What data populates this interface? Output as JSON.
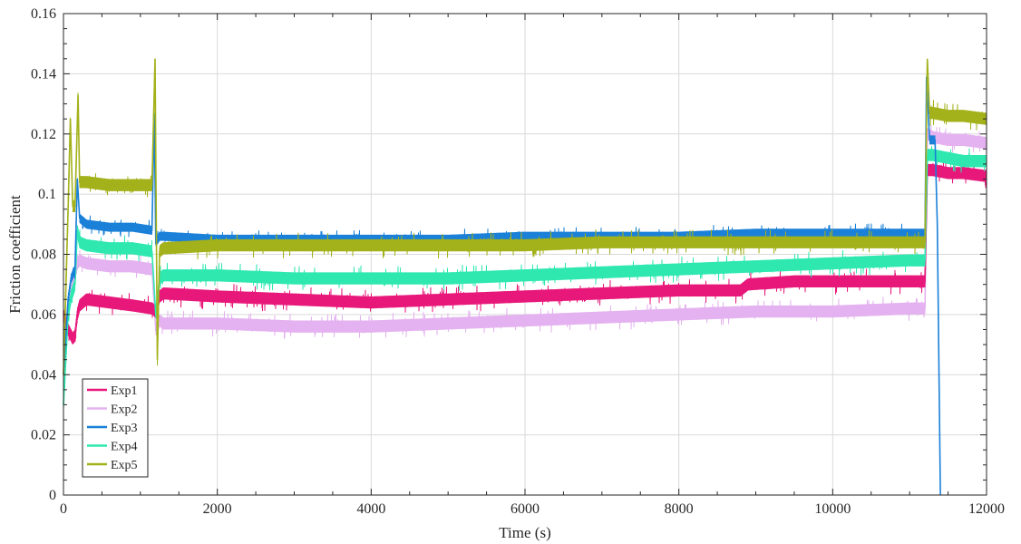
{
  "chart_data": {
    "type": "line",
    "title": "",
    "xlabel": "Time (s)",
    "ylabel": "Friction coefficient",
    "xlim": [
      0,
      12000
    ],
    "ylim": [
      0,
      0.16
    ],
    "x_ticks": [
      0,
      2000,
      4000,
      6000,
      8000,
      10000,
      12000
    ],
    "y_ticks": [
      0,
      0.02,
      0.04,
      0.06,
      0.08,
      0.1,
      0.12,
      0.14,
      0.16
    ],
    "x_tick_labels": [
      "0",
      "2000",
      "4000",
      "6000",
      "8000",
      "10000",
      "12000"
    ],
    "y_tick_labels": [
      "0",
      "0.02",
      "0.04",
      "0.06",
      "0.08",
      "0.1",
      "0.12",
      "0.14",
      "0.16"
    ],
    "grid": true,
    "legend_position": "bottom-left",
    "series": [
      {
        "name": "Exp1",
        "color": "#e8187a",
        "x": [
          0,
          60,
          120,
          150,
          180,
          210,
          300,
          600,
          900,
          1150,
          1200,
          1250,
          1300,
          2000,
          3000,
          4000,
          5000,
          6000,
          7000,
          8000,
          8800,
          8900,
          9500,
          10000,
          10500,
          11000,
          11200,
          11230,
          11300,
          11500,
          11700,
          12000
        ],
        "y": [
          0.06,
          0.055,
          0.052,
          0.053,
          0.06,
          0.063,
          0.065,
          0.064,
          0.063,
          0.062,
          0.061,
          0.066,
          0.067,
          0.066,
          0.065,
          0.064,
          0.065,
          0.066,
          0.067,
          0.068,
          0.068,
          0.07,
          0.071,
          0.071,
          0.071,
          0.071,
          0.071,
          0.108,
          0.108,
          0.107,
          0.107,
          0.106
        ],
        "band": 0.004
      },
      {
        "name": "Exp2",
        "color": "#e4b2f0",
        "x": [
          0,
          60,
          120,
          150,
          180,
          210,
          300,
          600,
          900,
          1150,
          1200,
          1250,
          1300,
          2000,
          3000,
          4000,
          5000,
          6000,
          7000,
          8000,
          9000,
          10000,
          11000,
          11200,
          11230,
          11300,
          11500,
          11700,
          12000
        ],
        "y": [
          0.05,
          0.06,
          0.07,
          0.074,
          0.077,
          0.078,
          0.077,
          0.076,
          0.076,
          0.075,
          0.055,
          0.058,
          0.057,
          0.057,
          0.056,
          0.056,
          0.057,
          0.058,
          0.059,
          0.06,
          0.061,
          0.061,
          0.062,
          0.062,
          0.12,
          0.119,
          0.118,
          0.118,
          0.117
        ],
        "band": 0.004
      },
      {
        "name": "Exp3",
        "color": "#1a80d8",
        "x": [
          0,
          60,
          100,
          150,
          180,
          210,
          300,
          600,
          900,
          1150,
          1180,
          1200,
          1250,
          1300,
          2000,
          3000,
          4000,
          5000,
          6000,
          7000,
          8000,
          9000,
          10000,
          11000,
          11200,
          11220,
          11260,
          11300,
          11330,
          11360,
          11400
        ],
        "y": [
          0.04,
          0.065,
          0.072,
          0.075,
          0.105,
          0.092,
          0.09,
          0.089,
          0.089,
          0.088,
          0.127,
          0.084,
          0.086,
          0.086,
          0.085,
          0.085,
          0.085,
          0.085,
          0.086,
          0.086,
          0.086,
          0.087,
          0.087,
          0.087,
          0.087,
          0.139,
          0.118,
          0.118,
          0.118,
          0.09,
          0.0
        ],
        "band": 0.003
      },
      {
        "name": "Exp4",
        "color": "#2ee8b0",
        "x": [
          0,
          60,
          100,
          150,
          180,
          210,
          300,
          600,
          900,
          1150,
          1200,
          1250,
          1300,
          2000,
          3000,
          4000,
          5000,
          6000,
          7000,
          8000,
          9000,
          10000,
          11000,
          11200,
          11230,
          11300,
          11500,
          11700,
          12000
        ],
        "y": [
          0.03,
          0.06,
          0.066,
          0.07,
          0.088,
          0.084,
          0.083,
          0.082,
          0.082,
          0.081,
          0.06,
          0.072,
          0.073,
          0.073,
          0.072,
          0.072,
          0.072,
          0.073,
          0.074,
          0.075,
          0.076,
          0.077,
          0.078,
          0.078,
          0.113,
          0.113,
          0.112,
          0.111,
          0.111
        ],
        "band": 0.004
      },
      {
        "name": "Exp5",
        "color": "#a3b11a",
        "x": [
          0,
          60,
          90,
          120,
          150,
          190,
          210,
          300,
          600,
          900,
          1150,
          1190,
          1220,
          1250,
          1300,
          2000,
          3000,
          4000,
          5000,
          6000,
          7000,
          8000,
          9000,
          10000,
          11000,
          11200,
          11230,
          11260,
          11300,
          11500,
          11700,
          12000
        ],
        "y": [
          0.04,
          0.095,
          0.125,
          0.096,
          0.096,
          0.133,
          0.104,
          0.104,
          0.103,
          0.103,
          0.103,
          0.145,
          0.045,
          0.081,
          0.082,
          0.083,
          0.083,
          0.083,
          0.083,
          0.083,
          0.084,
          0.084,
          0.084,
          0.084,
          0.084,
          0.084,
          0.145,
          0.127,
          0.127,
          0.126,
          0.126,
          0.125
        ],
        "band": 0.004
      }
    ]
  }
}
